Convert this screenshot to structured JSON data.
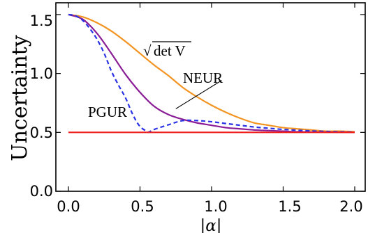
{
  "chart_data": {
    "type": "line",
    "xlabel": "|α|",
    "ylabel": "Uncertainty",
    "xlim": [
      0,
      2.0
    ],
    "ylim": [
      0,
      1.6
    ],
    "x_ticks": [
      "0.0",
      "0.5",
      "1.0",
      "1.5",
      "2.0"
    ],
    "x_tick_values": [
      0,
      0.5,
      1.0,
      1.5,
      2.0
    ],
    "y_ticks": [
      "0.0",
      "0.5",
      "1.0",
      "1.5"
    ],
    "y_tick_values": [
      0,
      0.5,
      1.0,
      1.5
    ],
    "grid": false,
    "series": [
      {
        "color": "#f39422",
        "style": "solid",
        "x": [
          0,
          0.1,
          0.2,
          0.3,
          0.4,
          0.5,
          0.6,
          0.7,
          0.8,
          0.9,
          1.0,
          1.1,
          1.2,
          1.3,
          1.4,
          1.5,
          1.6,
          1.7,
          1.8,
          1.9,
          2.0
        ],
        "y": [
          1.5,
          1.48,
          1.43,
          1.36,
          1.27,
          1.17,
          1.07,
          0.98,
          0.88,
          0.8,
          0.73,
          0.67,
          0.62,
          0.58,
          0.56,
          0.54,
          0.53,
          0.52,
          0.51,
          0.51,
          0.505
        ]
      },
      {
        "color": "#8a1c96",
        "style": "solid",
        "x": [
          0,
          0.1,
          0.2,
          0.3,
          0.4,
          0.5,
          0.6,
          0.7,
          0.8,
          0.9,
          1.0,
          1.1,
          1.2,
          1.3,
          1.4,
          1.5,
          1.6,
          1.7,
          1.8,
          1.9,
          2.0
        ],
        "y": [
          1.5,
          1.46,
          1.34,
          1.17,
          0.99,
          0.84,
          0.72,
          0.65,
          0.61,
          0.58,
          0.56,
          0.54,
          0.53,
          0.52,
          0.515,
          0.51,
          0.505,
          0.503,
          0.502,
          0.501,
          0.5
        ]
      },
      {
        "color": "#2a32e6",
        "style": "dashed",
        "x": [
          0,
          0.05,
          0.1,
          0.15,
          0.2,
          0.25,
          0.3,
          0.35,
          0.4,
          0.45,
          0.5,
          0.56,
          0.6,
          0.7,
          0.8,
          0.9,
          1.0,
          1.1,
          1.2,
          1.3,
          1.4,
          1.5,
          1.6,
          1.7,
          1.8,
          1.9,
          2.0
        ],
        "y": [
          1.5,
          1.49,
          1.45,
          1.38,
          1.29,
          1.17,
          1.02,
          0.9,
          0.79,
          0.65,
          0.55,
          0.5,
          0.525,
          0.565,
          0.6,
          0.6,
          0.59,
          0.575,
          0.56,
          0.545,
          0.535,
          0.525,
          0.518,
          0.512,
          0.508,
          0.505,
          0.502
        ]
      },
      {
        "color": "#ee2020",
        "style": "solid",
        "x": [
          0,
          2.0
        ],
        "y": [
          0.5,
          0.5
        ]
      }
    ],
    "annotations": [
      {
        "text_radical": "√",
        "text": "det V",
        "x": 0.7,
        "y": 1.34
      },
      {
        "text": "NEUR",
        "x": 1.09,
        "y": 1.0,
        "leader_to": [
          0.75,
          0.7
        ]
      },
      {
        "text": "PGUR",
        "x": 0.2,
        "y": 0.68
      }
    ]
  }
}
